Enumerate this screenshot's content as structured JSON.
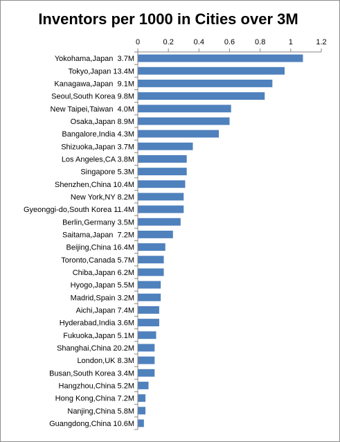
{
  "chart_data": {
    "type": "bar",
    "orientation": "horizontal",
    "title": "Inventors per 1000 in Cities over 3M",
    "xlabel": "",
    "ylabel": "",
    "xlim": [
      0,
      1.2
    ],
    "x_ticks": [
      "0",
      "0.2",
      "0.4",
      "0.6",
      "0.8",
      "1",
      "1.2"
    ],
    "x_axis_position": "top",
    "grid": false,
    "legend": "none",
    "bar_color": "#4f81bd",
    "categories": [
      "Yokohama,Japan  3.7M",
      "Tokyo,Japan 13.4M",
      "Kanagawa,Japan  9.1M",
      "Seoul,South Korea 9.8M",
      "New Taipei,Taiwan  4.0M",
      "Osaka,Japan 8.9M",
      "Bangalore,India 4.3M",
      "Shizuoka,Japan 3.7M",
      "Los Angeles,CA 3.8M",
      "Singapore 5.3M",
      "Shenzhen,China 10.4M",
      "New York,NY 8.2M",
      "Gyeonggi-do,South Korea 11.4M",
      "Berlin,Germany 3.5M",
      "Saitama,Japan  7.2M",
      "Beijing,China 16.4M",
      "Toronto,Canada 5.7M",
      "Chiba,Japan 6.2M",
      "Hyogo,Japan 5.5M",
      "Madrid,Spain 3.2M",
      "Aichi,Japan 7.4M",
      "Hyderabad,India 3.6M",
      "Fukuoka,Japan 5.1M",
      "Shanghai,China 20.2M",
      "London,UK 8.3M",
      "Busan,South Korea 3.4M",
      "Hangzhou,China 5.2M",
      "Hong Kong,China 7.2M",
      "Nanjing,China 5.8M",
      "Guangdong,China 10.6M"
    ],
    "values": [
      1.08,
      0.96,
      0.88,
      0.83,
      0.61,
      0.6,
      0.53,
      0.36,
      0.32,
      0.32,
      0.31,
      0.3,
      0.3,
      0.28,
      0.23,
      0.18,
      0.17,
      0.17,
      0.15,
      0.15,
      0.14,
      0.14,
      0.12,
      0.11,
      0.11,
      0.11,
      0.07,
      0.05,
      0.05,
      0.04
    ]
  }
}
